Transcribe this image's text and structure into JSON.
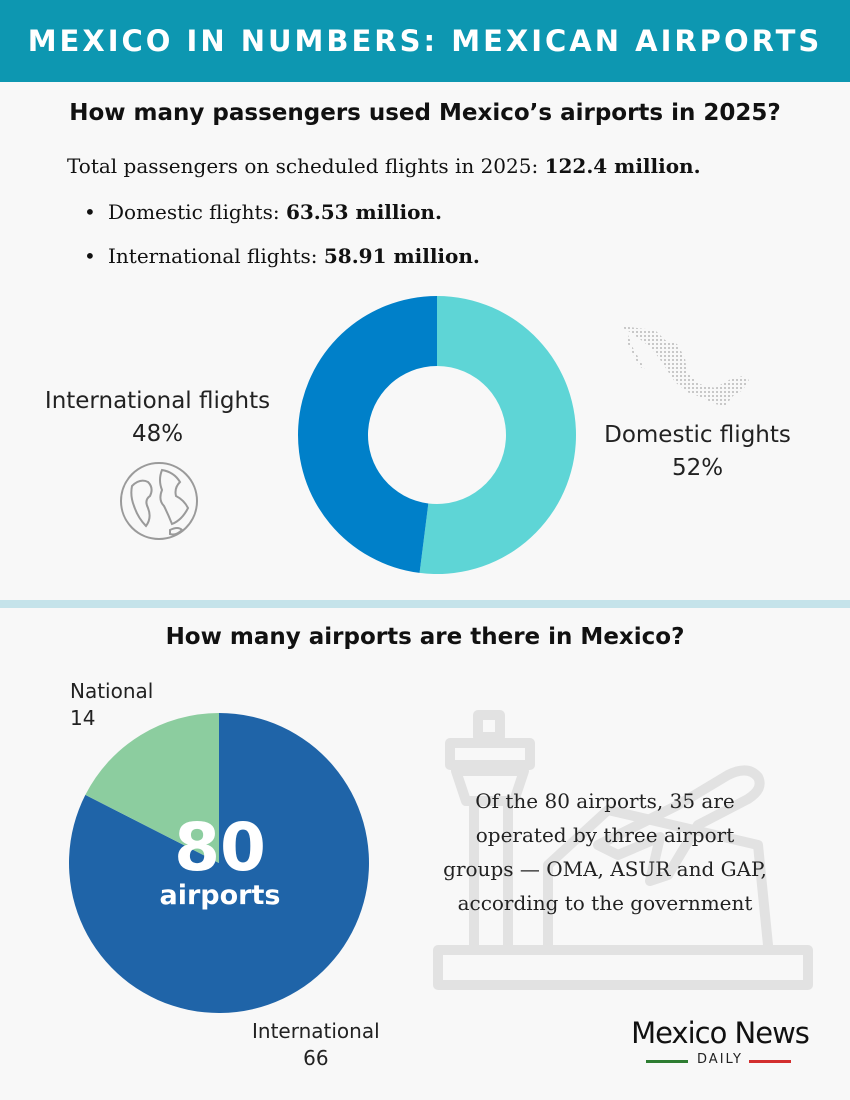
{
  "header": {
    "title": "MEXICO IN NUMBERS: MEXICAN AIRPORTS"
  },
  "passengers": {
    "question": "How many passengers used Mexico’s airports in 2025?",
    "total_prefix": "Total passengers on scheduled flights in 2025: ",
    "total_value": "122.4 million.",
    "bullets": [
      {
        "prefix": "Domestic flights: ",
        "value": "63.53 million."
      },
      {
        "prefix": "International flights: ",
        "value": "58.91 million."
      }
    ]
  },
  "airports": {
    "question": "How many airports are there in Mexico?",
    "center_number": "80",
    "center_unit": "airports",
    "note": "Of the 80 airports, 35 are operated by three airport groups — OMA, ASUR and GAP, according to the government"
  },
  "chart_data": [
    {
      "type": "pie",
      "variant": "donut",
      "categories": [
        "Domestic flights",
        "International flights"
      ],
      "values": [
        52,
        48
      ],
      "value_labels": [
        "52%",
        "48%"
      ],
      "colors": [
        "#5ed5d6",
        "#0080c9"
      ]
    },
    {
      "type": "pie",
      "categories": [
        "International",
        "National"
      ],
      "values": [
        66,
        14
      ],
      "value_labels": [
        "66",
        "14"
      ],
      "colors": [
        "#1f64a8",
        "#8ccd9f"
      ]
    }
  ],
  "icons": {
    "map": "mexico-map-icon",
    "globe": "globe-icon",
    "airport": "airport-icon"
  },
  "logo": {
    "name": "Mexico News",
    "sub": "DAILY"
  },
  "colors": {
    "banner": "#0d97b1",
    "divider": "#c5e3ea"
  }
}
